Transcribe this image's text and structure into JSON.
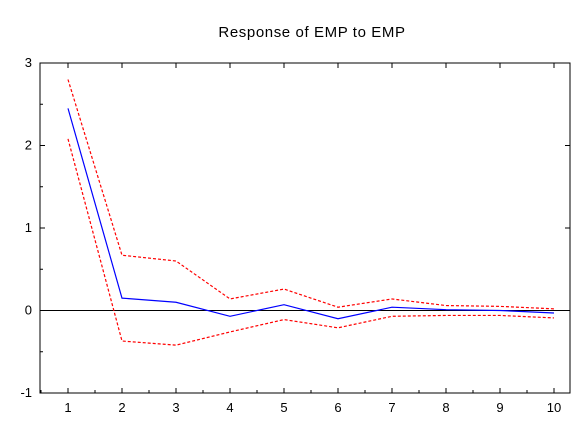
{
  "chart_data": {
    "type": "line",
    "title": "Response of EMP to EMP",
    "xlabel": "",
    "ylabel": "",
    "x": [
      1,
      2,
      3,
      4,
      5,
      6,
      7,
      8,
      9,
      10
    ],
    "x_ticks": [
      "1",
      "2",
      "3",
      "4",
      "5",
      "6",
      "7",
      "8",
      "9",
      "10"
    ],
    "y_ticks": [
      "-1",
      "0",
      "1",
      "2",
      "3"
    ],
    "ylim": [
      -1,
      3
    ],
    "zero_line": true,
    "grid": false,
    "legend": "none",
    "series": [
      {
        "role": "response",
        "color": "#0000ff",
        "style": "solid",
        "values": [
          2.45,
          0.15,
          0.1,
          -0.07,
          0.07,
          -0.1,
          0.04,
          0.01,
          0.0,
          -0.03
        ]
      },
      {
        "role": "upper_band",
        "color": "#ff0000",
        "style": "dashed",
        "values": [
          2.8,
          0.67,
          0.6,
          0.14,
          0.26,
          0.04,
          0.14,
          0.06,
          0.05,
          0.02
        ]
      },
      {
        "role": "lower_band",
        "color": "#ff0000",
        "style": "dashed",
        "values": [
          2.08,
          -0.37,
          -0.42,
          -0.26,
          -0.11,
          -0.21,
          -0.07,
          -0.06,
          -0.06,
          -0.09
        ]
      }
    ]
  }
}
